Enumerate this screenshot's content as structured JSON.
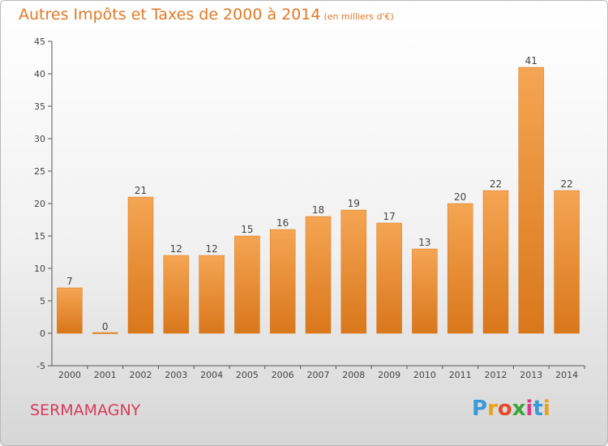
{
  "title": {
    "main": "Autres Impôts et Taxes de 2000 à 2014",
    "unit": "(en milliers d'€)"
  },
  "commune": "SERMAMAGNY",
  "logo": {
    "text": "Proxiti",
    "letters": [
      "P",
      "r",
      "o",
      "x",
      "i",
      "t",
      "i"
    ],
    "colors": [
      "#3a9ad9",
      "#e8a21a",
      "#e24a2a",
      "#3aa63a",
      "#d83a8a",
      "#3a9ad9",
      "#e8a21a"
    ]
  },
  "colors": {
    "title": "#e07a26",
    "bar_light": "#f5a553",
    "bar_dark": "#d9771b",
    "commune": "#d83a5a",
    "axis": "#555555"
  },
  "chart_data": {
    "type": "bar",
    "categories": [
      "2000",
      "2001",
      "2002",
      "2003",
      "2004",
      "2005",
      "2006",
      "2007",
      "2008",
      "2009",
      "2010",
      "2011",
      "2012",
      "2013",
      "2014"
    ],
    "values": [
      7,
      0,
      21,
      12,
      12,
      15,
      16,
      18,
      19,
      17,
      13,
      20,
      22,
      41,
      22
    ],
    "data_labels": [
      "7",
      "0",
      "21",
      "12",
      "12",
      "15",
      "16",
      "18",
      "19",
      "17",
      "13",
      "20",
      "22",
      "41",
      "22"
    ],
    "ylim": [
      -5,
      45
    ],
    "yticks": [
      -5,
      0,
      5,
      10,
      15,
      20,
      25,
      30,
      35,
      40,
      45
    ],
    "ytick_labels": [
      "-5",
      "0",
      "5",
      "10",
      "15",
      "20",
      "25",
      "30",
      "35",
      "40",
      "45"
    ],
    "grid": false,
    "legend": "none"
  }
}
